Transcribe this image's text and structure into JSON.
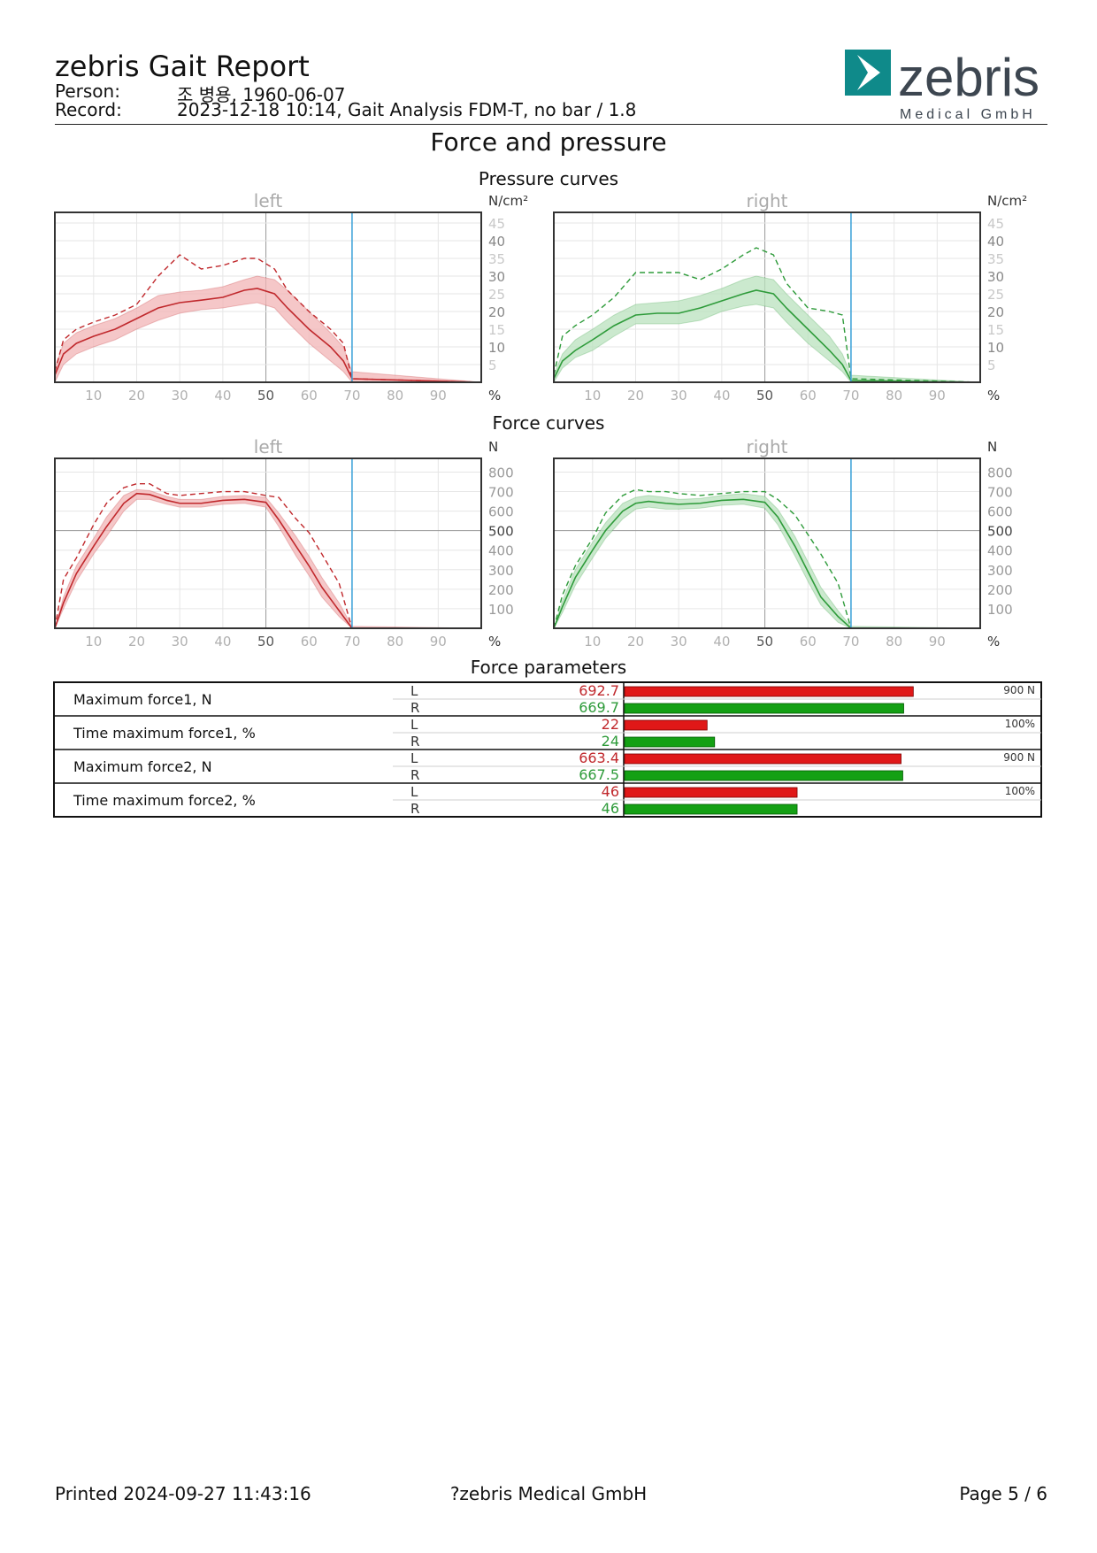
{
  "header": {
    "title": "zebris Gait Report",
    "person_label": "Person:",
    "person_value": "조 병용, 1960-06-07",
    "record_label": "Record:",
    "record_value": "2023-12-18 10:14, Gait Analysis FDM-T, no bar / 1.8",
    "logo_name": "zebris",
    "logo_sub": "Medical GmbH"
  },
  "section_title": "Force and pressure",
  "pressure_title": "Pressure curves",
  "force_title": "Force curves",
  "params_title": "Force parameters",
  "colors": {
    "left": "#c0282c",
    "left_band": "#f2b4b6",
    "right": "#2e9b3a",
    "right_band": "#b9e2bd",
    "toe_off_line": "#3aa0d8",
    "bar_left": "#e01818",
    "bar_right": "#14a014"
  },
  "chart_data": [
    {
      "type": "line",
      "name": "pressure-left",
      "panel_label": "left",
      "ylabel": "N/cm²",
      "xlabel": "%",
      "xlim": [
        1,
        100
      ],
      "ylim": [
        0,
        48
      ],
      "x_ticks": [
        10,
        20,
        30,
        40,
        50,
        60,
        70,
        80,
        90
      ],
      "y_ticks": [
        5,
        10,
        15,
        20,
        25,
        30,
        35,
        40,
        45
      ],
      "toe_off": 70,
      "x": [
        1,
        3,
        6,
        10,
        15,
        20,
        25,
        30,
        35,
        40,
        45,
        48,
        52,
        55,
        60,
        65,
        68,
        70,
        100
      ],
      "mean": [
        2,
        8,
        11,
        13,
        15,
        18,
        21,
        22.5,
        23.2,
        24,
        26,
        26.5,
        25,
        21,
        15,
        10,
        6,
        1,
        0
      ],
      "band_upper": [
        4,
        11,
        14,
        16,
        18,
        21,
        24.5,
        25.5,
        26,
        27,
        29,
        30,
        29,
        26,
        20,
        14,
        10,
        3,
        0
      ],
      "band_lower": [
        0,
        5,
        8,
        10,
        12,
        15,
        17.5,
        19.5,
        20.5,
        21,
        22,
        22.5,
        21,
        17,
        11,
        6,
        3,
        0,
        0
      ],
      "max": [
        3,
        12,
        15,
        17,
        19,
        22,
        30,
        36,
        32,
        33,
        35,
        35,
        32,
        26,
        20,
        15,
        11,
        1,
        0
      ]
    },
    {
      "type": "line",
      "name": "pressure-right",
      "panel_label": "right",
      "ylabel": "N/cm²",
      "xlabel": "%",
      "xlim": [
        1,
        100
      ],
      "ylim": [
        0,
        48
      ],
      "x_ticks": [
        10,
        20,
        30,
        40,
        50,
        60,
        70,
        80,
        90
      ],
      "y_ticks": [
        5,
        10,
        15,
        20,
        25,
        30,
        35,
        40,
        45
      ],
      "toe_off": 70,
      "x": [
        1,
        3,
        6,
        10,
        15,
        20,
        25,
        30,
        35,
        40,
        45,
        48,
        52,
        55,
        60,
        65,
        68,
        70,
        100
      ],
      "mean": [
        1,
        6,
        9,
        12,
        16,
        19,
        19.5,
        19.5,
        21,
        23,
        25,
        26,
        25,
        21,
        15,
        9,
        5,
        0.5,
        0
      ],
      "band_upper": [
        2,
        8,
        12,
        15,
        19,
        22,
        22.5,
        23,
        24.5,
        26.5,
        29,
        30,
        29,
        25,
        19,
        13,
        8,
        2,
        0
      ],
      "band_lower": [
        0,
        4,
        7,
        9,
        13,
        16.5,
        16.5,
        16.5,
        17.5,
        20,
        21.5,
        22,
        21,
        17,
        11,
        6,
        3,
        0,
        0
      ],
      "max": [
        2,
        13,
        16,
        19,
        24,
        31,
        31,
        31,
        29,
        32,
        36,
        38,
        36,
        28,
        21,
        20,
        19,
        1,
        0
      ]
    },
    {
      "type": "line",
      "name": "force-left",
      "panel_label": "left",
      "ylabel": "N",
      "xlabel": "%",
      "xlim": [
        1,
        100
      ],
      "ylim": [
        0,
        870
      ],
      "x_ticks": [
        10,
        20,
        30,
        40,
        50,
        60,
        70,
        80,
        90
      ],
      "y_ticks": [
        100,
        200,
        300,
        400,
        500,
        600,
        700,
        800
      ],
      "toe_off": 70,
      "x": [
        1,
        3,
        6,
        10,
        13,
        17,
        20,
        23,
        27,
        30,
        35,
        40,
        45,
        50,
        53,
        57,
        60,
        63,
        67,
        70,
        100
      ],
      "mean": [
        0,
        130,
        280,
        420,
        520,
        640,
        690,
        685,
        655,
        640,
        640,
        655,
        660,
        645,
        555,
        420,
        320,
        210,
        90,
        0,
        0
      ],
      "band_upper": [
        0,
        160,
        320,
        460,
        570,
        680,
        710,
        705,
        675,
        660,
        660,
        675,
        680,
        670,
        590,
        470,
        370,
        260,
        130,
        10,
        0
      ],
      "band_lower": [
        0,
        100,
        240,
        380,
        470,
        600,
        660,
        660,
        635,
        620,
        620,
        635,
        640,
        620,
        520,
        370,
        270,
        160,
        60,
        0,
        0
      ],
      "max": [
        0,
        250,
        360,
        530,
        640,
        720,
        740,
        740,
        690,
        680,
        690,
        700,
        700,
        680,
        670,
        560,
        490,
        380,
        230,
        0,
        0
      ]
    },
    {
      "type": "line",
      "name": "force-right",
      "panel_label": "right",
      "ylabel": "N",
      "xlabel": "%",
      "xlim": [
        1,
        100
      ],
      "ylim": [
        0,
        870
      ],
      "x_ticks": [
        10,
        20,
        30,
        40,
        50,
        60,
        70,
        80,
        90
      ],
      "y_ticks": [
        100,
        200,
        300,
        400,
        500,
        600,
        700,
        800
      ],
      "toe_off": 70,
      "x": [
        1,
        3,
        6,
        10,
        13,
        17,
        20,
        23,
        27,
        30,
        35,
        40,
        45,
        50,
        53,
        57,
        60,
        63,
        67,
        70,
        100
      ],
      "mean": [
        0,
        110,
        260,
        400,
        500,
        600,
        640,
        650,
        640,
        635,
        640,
        655,
        660,
        645,
        570,
        420,
        290,
        160,
        60,
        0,
        0
      ],
      "band_upper": [
        0,
        140,
        300,
        440,
        540,
        640,
        670,
        680,
        670,
        660,
        665,
        680,
        690,
        675,
        610,
        470,
        340,
        210,
        90,
        10,
        0
      ],
      "band_lower": [
        0,
        80,
        220,
        360,
        460,
        560,
        610,
        620,
        610,
        610,
        615,
        630,
        635,
        615,
        530,
        370,
        240,
        120,
        30,
        0,
        0
      ],
      "max": [
        0,
        170,
        320,
        460,
        590,
        680,
        710,
        700,
        700,
        690,
        680,
        690,
        700,
        700,
        660,
        580,
        480,
        380,
        230,
        0,
        0
      ]
    }
  ],
  "params": {
    "rows": [
      {
        "label": "Maximum force1, N",
        "l": "692.7",
        "r": "669.7",
        "l_val": 692.7,
        "r_val": 669.7,
        "max_val": 900,
        "scale_label": "900 N"
      },
      {
        "label": "Time maximum force1, %",
        "l": "22",
        "r": "24",
        "l_val": 22,
        "r_val": 24,
        "max_val": 100,
        "scale_label": "100%"
      },
      {
        "label": "Maximum force2, N",
        "l": "663.4",
        "r": "667.5",
        "l_val": 663.4,
        "r_val": 667.5,
        "max_val": 900,
        "scale_label": "900 N"
      },
      {
        "label": "Time maximum force2, %",
        "l": "46",
        "r": "46",
        "l_val": 46,
        "r_val": 46,
        "max_val": 100,
        "scale_label": "100%"
      }
    ],
    "l_tag": "L",
    "r_tag": "R"
  },
  "footer": {
    "printed": "Printed  2024-09-27 11:43:16",
    "company": "?zebris Medical GmbH",
    "page": "Page  5 / 6"
  }
}
